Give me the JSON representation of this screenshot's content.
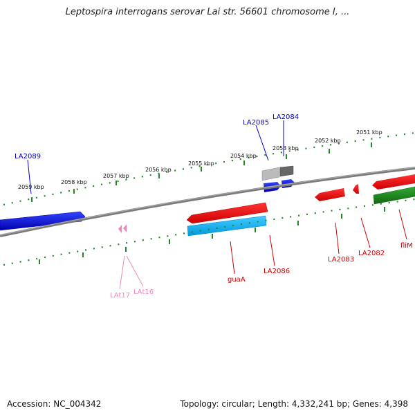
{
  "title": "Leptospira interrogans serovar Lai str. 56601 chromosome I, ...",
  "footer": {
    "accession": "Accession: NC_004342",
    "summary": "Topology: circular; Length: 4,332,241 bp; Genes: 4,398"
  },
  "kbp_labels": [
    "2059 kbp",
    "2058 kbp",
    "2057 kbp",
    "2056 kbp",
    "2055 kbp",
    "2054 kbp",
    "2053 kbp",
    "2052 kbp",
    "2051 kbp"
  ],
  "genes_forward": [
    {
      "name": "LA2089",
      "color": "#0000cc"
    },
    {
      "name": "LA2085",
      "color": "#0000cc"
    },
    {
      "name": "LA2084",
      "color": "#0000cc"
    }
  ],
  "genes_reverse": [
    {
      "name": "LAt17",
      "color": "#ee88bb"
    },
    {
      "name": "LAt16",
      "color": "#ee88bb"
    },
    {
      "name": "guaA",
      "color": "#cc0000"
    },
    {
      "name": "LA2086",
      "color": "#cc0000"
    },
    {
      "name": "LA2083",
      "color": "#cc0000"
    },
    {
      "name": "LA2082",
      "color": "#cc0000"
    },
    {
      "name": "fliM",
      "color": "#cc0000"
    }
  ],
  "colors": {
    "forward_cds": "#0000ee",
    "reverse_cds": "#ee0000",
    "trna": "#ee88bb",
    "gc_high": "#22882f",
    "gc_low": "#00aaee",
    "gray_feature": "#999999",
    "backbone": "#808080",
    "tick": "#228822"
  }
}
